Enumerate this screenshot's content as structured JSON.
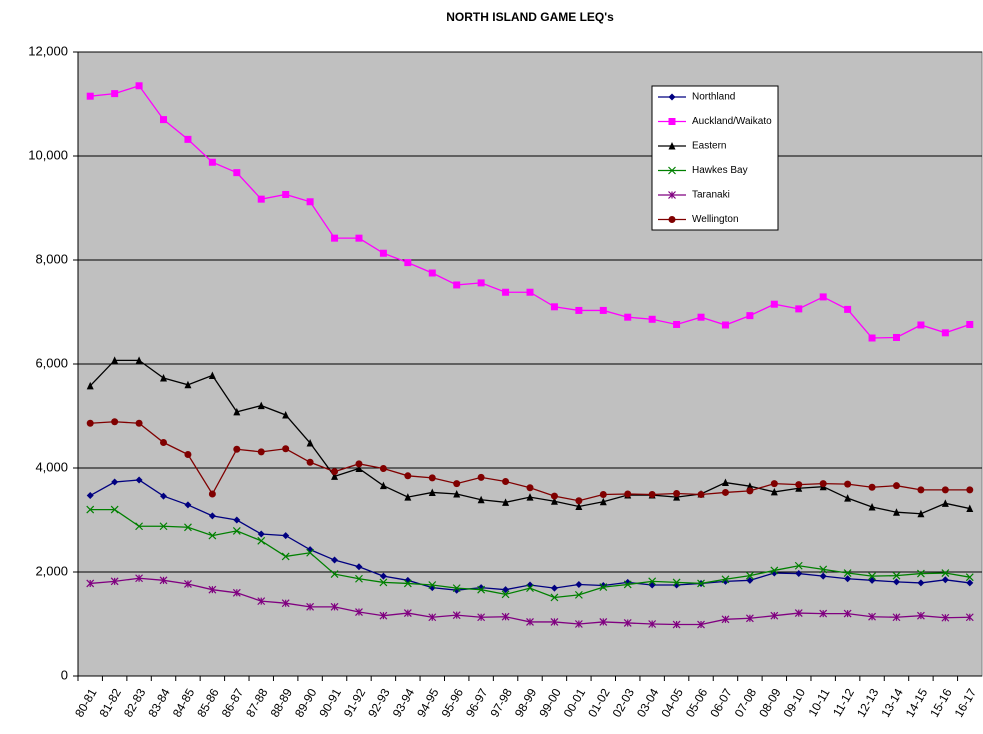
{
  "chart_data": {
    "type": "line",
    "title": "NORTH ISLAND GAME LEQ's",
    "categories": [
      "80-81",
      "81-82",
      "82-83",
      "83-84",
      "84-85",
      "85-86",
      "86-87",
      "87-88",
      "88-89",
      "89-90",
      "90-91",
      "91-92",
      "92-93",
      "93-94",
      "94-95",
      "95-96",
      "96-97",
      "97-98",
      "98-99",
      "99-00",
      "00-01",
      "01-02",
      "02-03",
      "03-04",
      "04-05",
      "05-06",
      "06-07",
      "07-08",
      "08-09",
      "09-10",
      "10-11",
      "11-12",
      "12-13",
      "13-14",
      "14-15",
      "15-16",
      "16-17"
    ],
    "series": [
      {
        "name": "Northland",
        "color": "#000080",
        "marker": "diamond",
        "values": [
          3470,
          3730,
          3770,
          3460,
          3290,
          3080,
          3000,
          2730,
          2700,
          2430,
          2230,
          2100,
          1920,
          1840,
          1700,
          1650,
          1700,
          1660,
          1750,
          1690,
          1760,
          1740,
          1800,
          1750,
          1750,
          1780,
          1820,
          1840,
          1980,
          1970,
          1920,
          1870,
          1840,
          1810,
          1790,
          1850,
          1790
        ]
      },
      {
        "name": "Auckland/Waikato",
        "color": "#ff00ff",
        "marker": "square",
        "values": [
          11150,
          11200,
          11350,
          10700,
          10320,
          9880,
          9680,
          9170,
          9260,
          9120,
          8420,
          8420,
          8130,
          7950,
          7750,
          7520,
          7560,
          7380,
          7380,
          7100,
          7030,
          7030,
          6900,
          6860,
          6760,
          6900,
          6750,
          6930,
          7150,
          7060,
          7290,
          7050,
          6500,
          6510,
          6750,
          6600,
          6760
        ]
      },
      {
        "name": "Eastern",
        "color": "#000000",
        "marker": "triangle",
        "values": [
          5580,
          6070,
          6070,
          5730,
          5600,
          5780,
          5080,
          5200,
          5020,
          4480,
          3840,
          3990,
          3660,
          3440,
          3530,
          3500,
          3390,
          3340,
          3440,
          3360,
          3260,
          3350,
          3480,
          3480,
          3440,
          3500,
          3720,
          3650,
          3540,
          3610,
          3640,
          3420,
          3250,
          3150,
          3120,
          3320,
          3220
        ]
      },
      {
        "name": "Hawkes Bay",
        "color": "#008000",
        "marker": "x",
        "values": [
          3200,
          3200,
          2880,
          2880,
          2860,
          2700,
          2790,
          2600,
          2300,
          2370,
          1960,
          1870,
          1800,
          1780,
          1750,
          1690,
          1660,
          1570,
          1690,
          1510,
          1560,
          1710,
          1760,
          1820,
          1800,
          1780,
          1860,
          1930,
          2030,
          2120,
          2050,
          1980,
          1920,
          1930,
          1970,
          1980,
          1900
        ]
      },
      {
        "name": "Taranaki",
        "color": "#800080",
        "marker": "star",
        "values": [
          1780,
          1820,
          1880,
          1840,
          1770,
          1660,
          1600,
          1440,
          1400,
          1330,
          1330,
          1230,
          1160,
          1210,
          1130,
          1170,
          1130,
          1140,
          1040,
          1040,
          1000,
          1040,
          1020,
          1000,
          990,
          990,
          1090,
          1110,
          1160,
          1210,
          1200,
          1200,
          1140,
          1130,
          1160,
          1120,
          1130
        ]
      },
      {
        "name": "Wellington",
        "color": "#800000",
        "marker": "circle",
        "values": [
          4860,
          4890,
          4860,
          4490,
          4260,
          3500,
          4360,
          4310,
          4370,
          4110,
          3930,
          4080,
          3990,
          3850,
          3810,
          3700,
          3820,
          3740,
          3620,
          3460,
          3370,
          3490,
          3500,
          3490,
          3510,
          3490,
          3530,
          3560,
          3700,
          3680,
          3700,
          3690,
          3630,
          3660,
          3580,
          3580,
          3580
        ]
      }
    ],
    "ylim": [
      0,
      12000
    ],
    "yticks": [
      0,
      {
        "value": 2000,
        "label": "2,000"
      },
      {
        "value": 4000,
        "label": "4,000"
      },
      {
        "value": 6000,
        "label": "6,000"
      },
      {
        "value": 8000,
        "label": "8,000"
      },
      {
        "value": 10000,
        "label": "10,000"
      },
      {
        "value": 12000,
        "label": "12,000"
      }
    ],
    "grid": true,
    "legend": "upper right"
  }
}
